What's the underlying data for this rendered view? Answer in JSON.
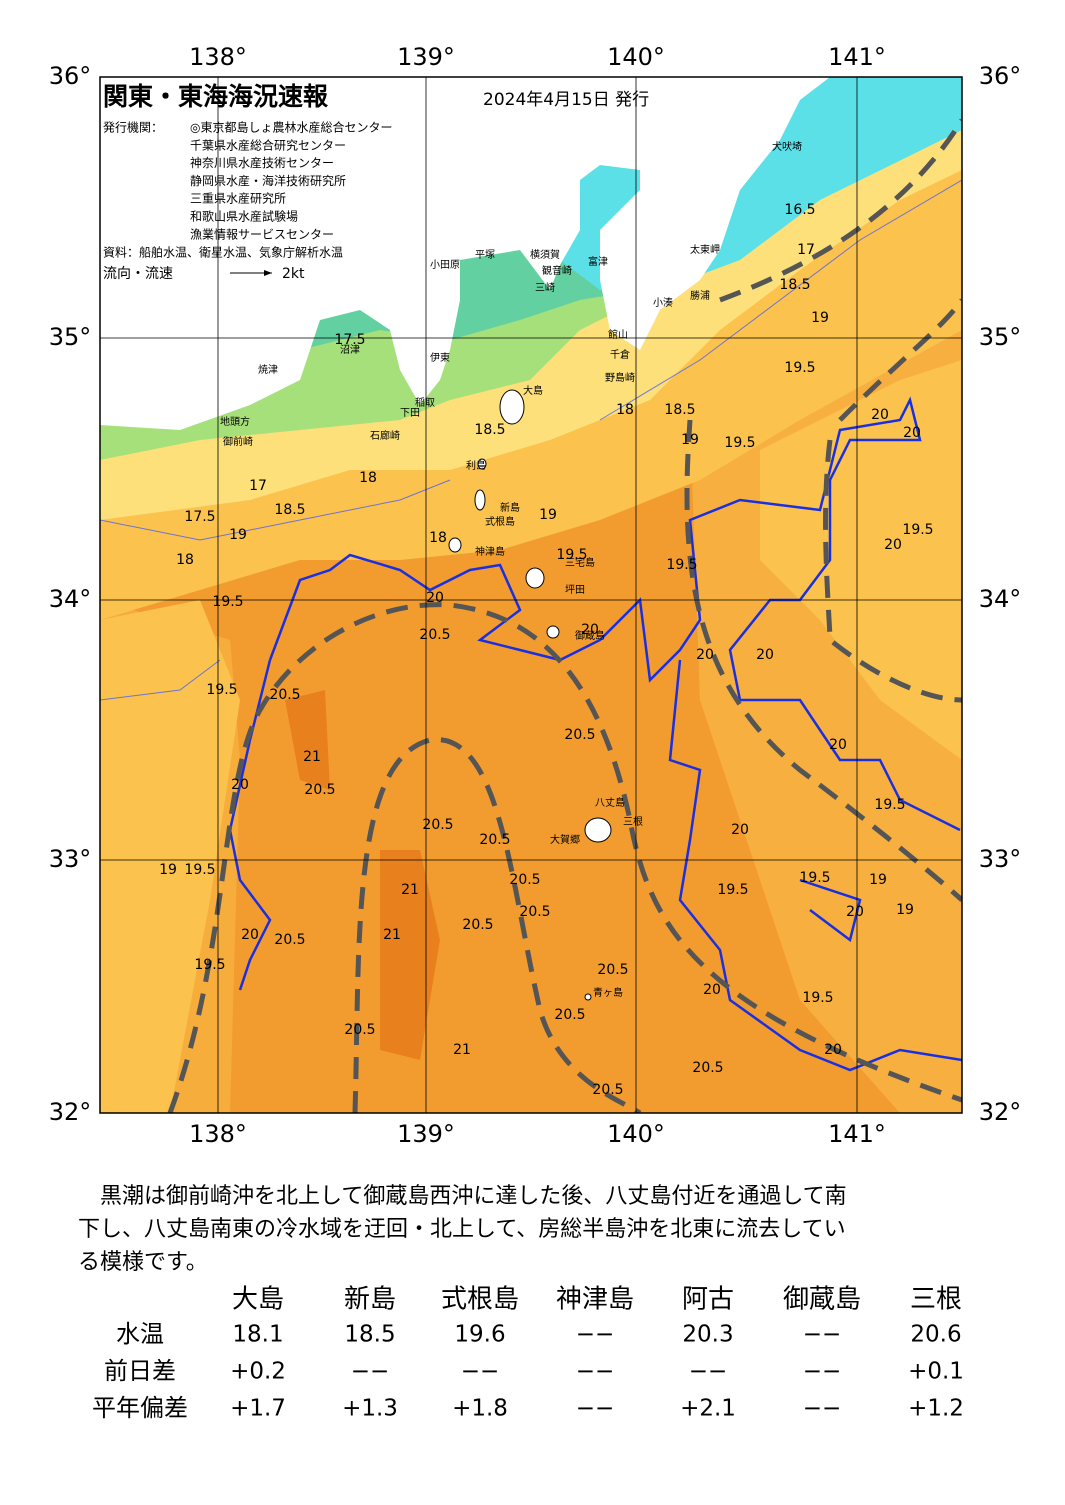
{
  "header": {
    "title": "関東・東海海況速報",
    "date": "2024年4月15日 発行",
    "issuer_label": "発行機関：",
    "issuers": [
      "◎東京都島しょ農林水産総合センター",
      "千葉県水産総合研究センター",
      "神奈川県水産技術センター",
      "静岡県水産・海洋技術研究所",
      "三重県水産研究所",
      "和歌山県水産試験場",
      "漁業情報サービスセンター"
    ],
    "source": "資料：船舶水温、衛星水温、気象庁解析水温",
    "flow_label": "流向・流速",
    "flow_scale": "2kt"
  },
  "map": {
    "lon_labels": [
      "138°",
      "139°",
      "140°",
      "141°"
    ],
    "lat_labels": [
      "36°",
      "35°",
      "34°",
      "33°",
      "32°"
    ],
    "places": [
      "犬吠埼",
      "太東岬",
      "勝浦",
      "小湊",
      "館山",
      "千倉",
      "野島崎",
      "富津",
      "横須賀",
      "観音崎",
      "三崎",
      "平塚",
      "小田原",
      "沼津",
      "伊東",
      "稲取",
      "下田",
      "石廊崎",
      "焼津",
      "地頭方",
      "御前崎",
      "大島",
      "利島",
      "新島",
      "式根島",
      "神津島",
      "三宅島",
      "坪田",
      "御蔵島",
      "八丈島",
      "三根",
      "大賀郷",
      "青ヶ島"
    ],
    "contour_labels": [
      "16.5",
      "17",
      "18.5",
      "19",
      "19.5",
      "20",
      "20",
      "17.5",
      "18.5",
      "18",
      "18.5",
      "19",
      "19.5",
      "18",
      "17",
      "18.5",
      "17.5",
      "19",
      "18",
      "19.5",
      "18",
      "19",
      "19.5",
      "19.5",
      "19.5",
      "20",
      "20",
      "20.5",
      "20",
      "20",
      "20",
      "20.5",
      "19.5",
      "21",
      "20.5",
      "20.5",
      "20",
      "19.5",
      "20",
      "20.5",
      "20.5",
      "20",
      "19.5",
      "19",
      "19.5",
      "20",
      "19",
      "19",
      "19.5",
      "20.5",
      "20.5",
      "20.5",
      "21",
      "21",
      "20.5",
      "20",
      "19.5",
      "20.5",
      "20",
      "19.5",
      "20.5",
      "20.5",
      "21",
      "20",
      "20.5",
      "20.5"
    ]
  },
  "summary": [
    "　黒潮は御前崎沖を北上して御蔵島西沖に達した後、八丈島付近を通過して南",
    "下し、八丈島南東の冷水域を迂回・北上して、房総半島沖を北東に流去してい",
    "る模様です。"
  ],
  "table": {
    "columns": [
      "大島",
      "新島",
      "式根島",
      "神津島",
      "阿古",
      "御蔵島",
      "三根"
    ],
    "rows": [
      {
        "label": "水温",
        "values": [
          "18.1",
          "18.5",
          "19.6",
          "−−",
          "20.3",
          "−−",
          "20.6"
        ]
      },
      {
        "label": "前日差",
        "values": [
          "+0.2",
          "−−",
          "−−",
          "−−",
          "−−",
          "−−",
          "+0.1"
        ]
      },
      {
        "label": "平年偏差",
        "values": [
          "+1.7",
          "+1.3",
          "+1.8",
          "−−",
          "+2.1",
          "−−",
          "+1.2"
        ]
      }
    ]
  }
}
